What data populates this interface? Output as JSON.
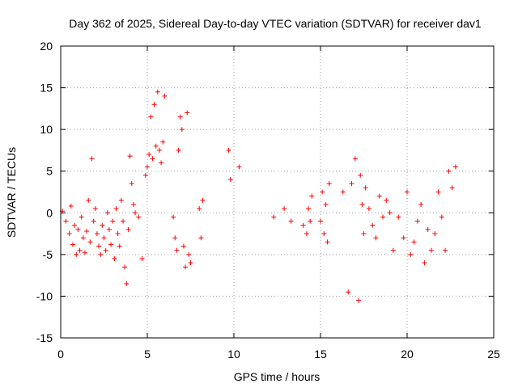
{
  "colors": {
    "series": "#ff0000",
    "grid": "#a0a0a0",
    "axis": "#000000",
    "background": "#ffffff"
  },
  "chart_data": {
    "type": "scatter",
    "title": "Day 362 of 2025, Sidereal Day-to-day VTEC variation (SDTVAR) for receiver dav1",
    "xlabel": "GPS time / hours",
    "ylabel": "SDTVAR / TECUs",
    "xlim": [
      0,
      25
    ],
    "ylim": [
      -15,
      20
    ],
    "xticks": [
      "0",
      "5",
      "10",
      "15",
      "20",
      "25"
    ],
    "yticks": [
      "20",
      "15",
      "10",
      "5",
      "0",
      "-5",
      "-10",
      "-15"
    ],
    "xtick_values": [
      0,
      5,
      10,
      15,
      20,
      25
    ],
    "ytick_values": [
      20,
      15,
      10,
      5,
      0,
      -5,
      -10,
      -15
    ],
    "grid": true,
    "marker": "plus",
    "series": [
      {
        "name": "SDTVAR",
        "x": [
          0.1,
          0.3,
          0.5,
          0.6,
          0.7,
          0.8,
          0.9,
          1.0,
          1.1,
          1.2,
          1.3,
          1.4,
          1.5,
          1.6,
          1.7,
          1.8,
          1.9,
          2.0,
          2.1,
          2.2,
          2.3,
          2.4,
          2.5,
          2.6,
          2.7,
          2.8,
          2.9,
          3.0,
          3.1,
          3.2,
          3.3,
          3.4,
          3.5,
          3.6,
          3.7,
          3.8,
          3.9,
          4.0,
          4.1,
          4.2,
          4.3,
          4.5,
          4.7,
          4.9,
          5.0,
          5.1,
          5.2,
          5.3,
          5.4,
          5.5,
          5.6,
          5.7,
          5.8,
          5.9,
          6.0,
          6.5,
          6.6,
          6.7,
          6.8,
          6.9,
          7.0,
          7.1,
          7.2,
          7.3,
          7.4,
          7.5,
          8.0,
          8.1,
          8.2,
          9.7,
          9.8,
          10.3,
          12.3,
          12.9,
          13.3,
          14.0,
          14.2,
          14.3,
          14.4,
          14.5,
          15.0,
          15.1,
          15.2,
          15.3,
          15.4,
          15.5,
          16.3,
          16.6,
          16.8,
          17.0,
          17.2,
          17.3,
          17.4,
          17.5,
          17.6,
          17.8,
          18.0,
          18.2,
          18.4,
          18.6,
          18.8,
          19.0,
          19.2,
          19.5,
          19.8,
          20.0,
          20.2,
          20.4,
          20.6,
          20.8,
          21.0,
          21.2,
          21.4,
          21.6,
          21.8,
          22.0,
          22.2,
          22.4,
          22.6,
          22.8
        ],
        "y": [
          0.2,
          -1.0,
          -2.5,
          0.8,
          -3.8,
          -1.5,
          -5.0,
          -2.0,
          -4.5,
          -0.5,
          -3.0,
          -4.8,
          -2.2,
          1.5,
          -3.5,
          6.5,
          -1.0,
          0.5,
          -2.5,
          -4.0,
          -5.0,
          -1.5,
          -3.0,
          -4.5,
          0.0,
          -2.0,
          -3.8,
          -1.0,
          -5.5,
          0.5,
          -2.5,
          -4.0,
          1.5,
          -1.0,
          -6.5,
          -8.5,
          -2.0,
          6.8,
          3.5,
          1.0,
          0.0,
          -0.5,
          -5.5,
          4.5,
          5.5,
          7.0,
          11.5,
          6.5,
          13.0,
          8.0,
          14.5,
          7.5,
          6.0,
          8.5,
          14.0,
          -0.5,
          -3.0,
          -4.5,
          7.5,
          11.5,
          10.0,
          -4.0,
          -6.5,
          12.0,
          -5.0,
          -6.0,
          0.5,
          -3.0,
          1.5,
          7.5,
          4.0,
          5.5,
          -0.5,
          0.5,
          -1.0,
          -1.5,
          -2.5,
          0.5,
          -1.0,
          2.0,
          -1.0,
          2.5,
          -2.5,
          1.0,
          -3.5,
          3.5,
          2.5,
          -9.5,
          3.5,
          6.5,
          -10.5,
          4.5,
          1.0,
          -2.5,
          3.0,
          0.5,
          -1.5,
          -3.0,
          2.0,
          -0.5,
          1.5,
          0.0,
          -4.5,
          -0.5,
          -3.0,
          2.5,
          -5.0,
          -3.5,
          -1.0,
          1.0,
          -6.0,
          -2.0,
          -4.5,
          -2.5,
          2.5,
          -0.5,
          -4.5,
          5.0,
          3.0,
          5.5
        ]
      }
    ]
  }
}
